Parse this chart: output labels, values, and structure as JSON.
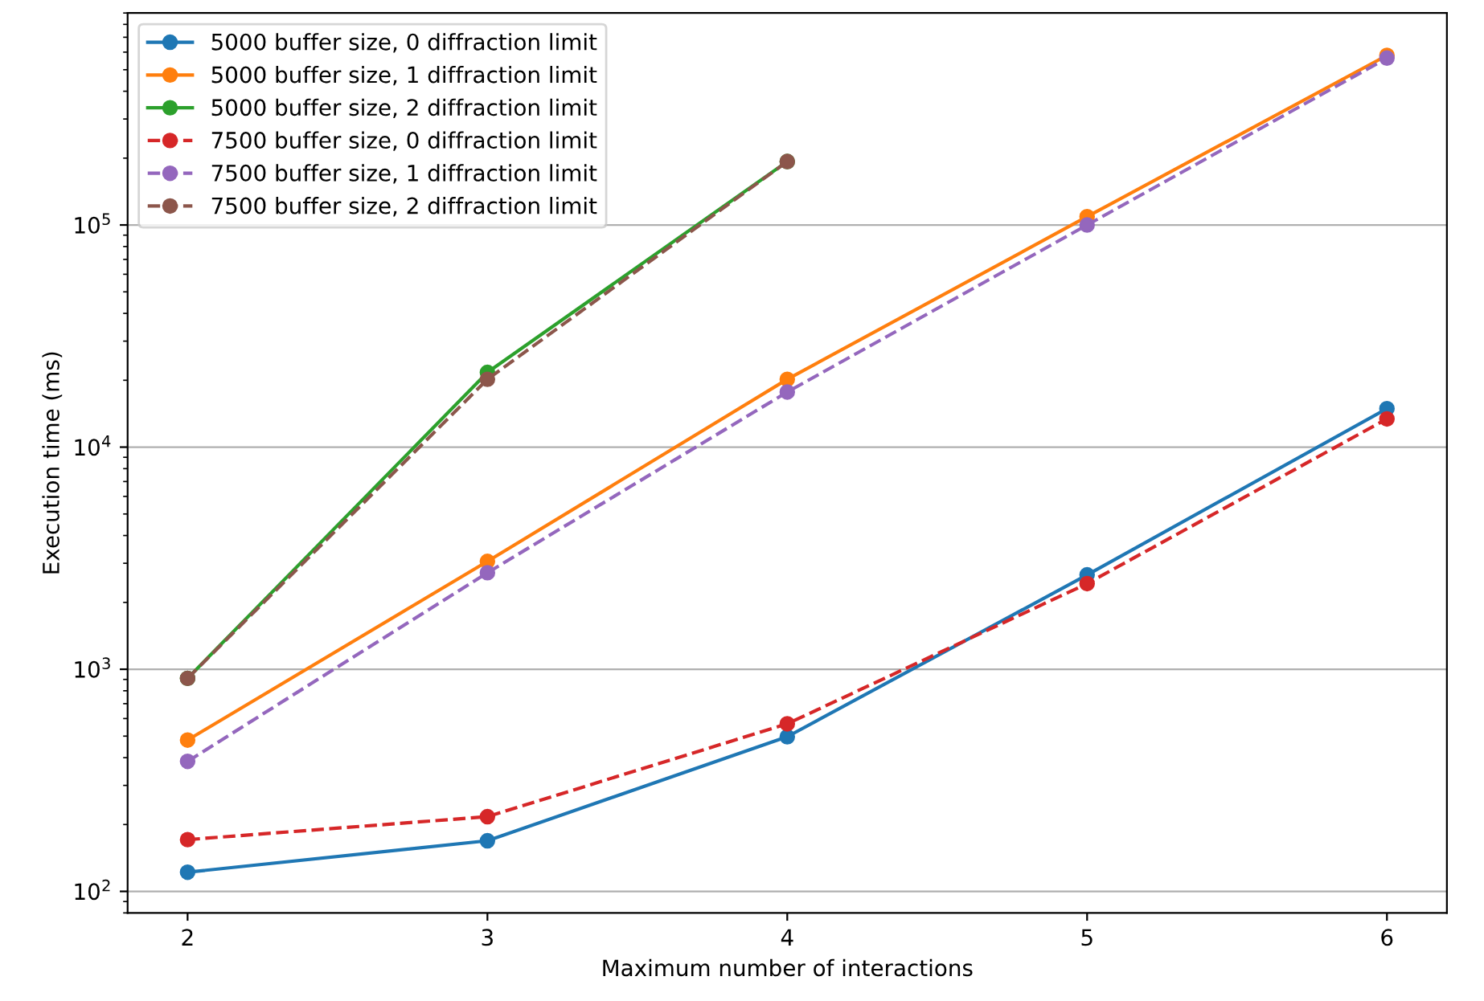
{
  "chart_data": {
    "type": "line",
    "xlabel": "Maximum number of interactions",
    "ylabel": "Execution time (ms)",
    "x": [
      2,
      3,
      4,
      5,
      6
    ],
    "log": "y",
    "grid": "y",
    "legend": "top left",
    "marker": "circle",
    "xlim": [
      1.8,
      6.2
    ],
    "xticks": [
      2,
      3,
      4,
      5,
      6
    ],
    "ylim": [
      80,
      900000
    ],
    "yticks": [
      {
        "value": 100,
        "label": "10$^{2}$"
      },
      {
        "value": 1000,
        "label": "10$^{3}$"
      },
      {
        "value": 10000,
        "label": "10$^{4}$"
      },
      {
        "value": 100000,
        "label": "10$^{5}$"
      }
    ],
    "series": [
      {
        "name": "5000 buffer size, 0 diffraction limit",
        "color": "#1f77b4",
        "line_style": "solid",
        "values": [
          122,
          169,
          497,
          2660,
          14900
        ]
      },
      {
        "name": "5000 buffer size, 1 diffraction limit",
        "color": "#ff7f0e",
        "line_style": "solid",
        "values": [
          480,
          3060,
          20200,
          109000,
          580000
        ]
      },
      {
        "name": "5000 buffer size, 2 diffraction limit",
        "color": "#2ca02c",
        "line_style": "solid",
        "values": [
          910,
          21700,
          193000,
          null,
          null
        ]
      },
      {
        "name": "7500 buffer size, 0 diffraction limit",
        "color": "#d62728",
        "line_style": "dashed",
        "values": [
          171,
          217,
          568,
          2430,
          13400
        ]
      },
      {
        "name": "7500 buffer size, 1 diffraction limit",
        "color": "#9467bd",
        "line_style": "dashed",
        "values": [
          385,
          2720,
          17700,
          100000,
          564000
        ]
      },
      {
        "name": "7500 buffer size, 2 diffraction limit",
        "color": "#8c564b",
        "line_style": "dashed",
        "values": [
          910,
          20200,
          193000,
          null,
          null
        ]
      }
    ]
  }
}
